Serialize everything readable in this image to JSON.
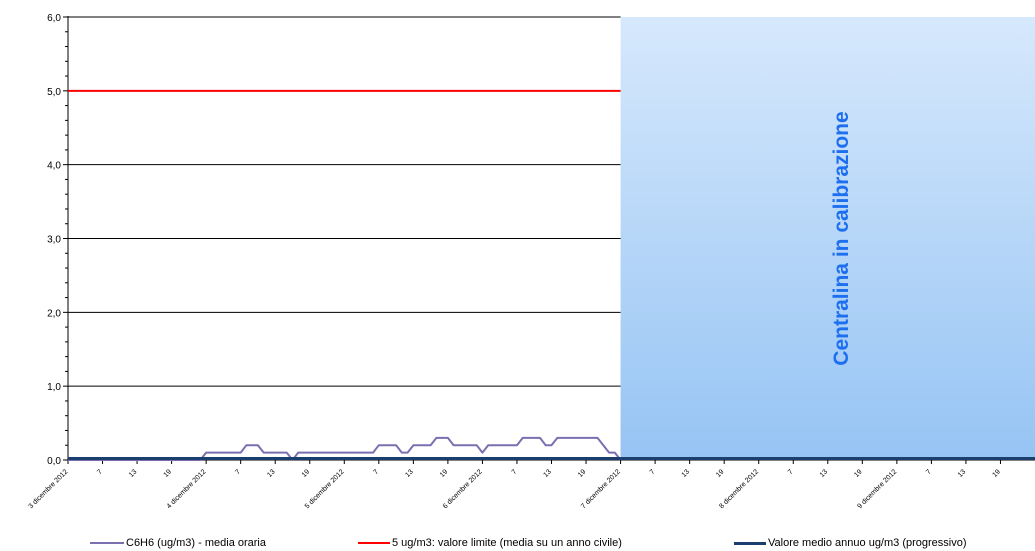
{
  "chart_data": {
    "type": "line",
    "ylim": [
      0,
      6
    ],
    "y_ticks": [
      "0,0",
      "1,0",
      "2,0",
      "3,0",
      "4,0",
      "5,0",
      "6,0"
    ],
    "x_tick_labels": [
      "3 dicembre 2012",
      "7",
      "13",
      "19",
      "4 dicembre 2012",
      "7",
      "13",
      "19",
      "5 dicembre 2012",
      "7",
      "13",
      "19",
      "6 dicembre 2012",
      "7",
      "13",
      "19",
      "7 dicembre 2012",
      "7",
      "13",
      "19",
      "8 dicembre 2012",
      "7",
      "13",
      "19",
      "9 dicembre 2012",
      "7",
      "13",
      "19"
    ],
    "hours_shown": 168,
    "grid": true,
    "calibration_band": {
      "from_hour": 96,
      "to_hour": 168,
      "label": "Centralina in calibrazione",
      "color_top": "#d6e8fc",
      "color_bottom": "#96c4f4",
      "label_color": "#1e6ff0"
    },
    "series": [
      {
        "name": "C6H6 (ug/m3)  - media oraria",
        "color": "#7b6fb0",
        "values": [
          0,
          0,
          0,
          0,
          0,
          0,
          0,
          0,
          0,
          0,
          0,
          0,
          0,
          0,
          0,
          0,
          0,
          0,
          0,
          0,
          0,
          0,
          0,
          0,
          0.1,
          0.1,
          0.1,
          0.1,
          0.1,
          0.1,
          0.1,
          0.2,
          0.2,
          0.2,
          0.1,
          0.1,
          0.1,
          0.1,
          0.1,
          0,
          0.1,
          0.1,
          0.1,
          0.1,
          0.1,
          0.1,
          0.1,
          0.1,
          0.1,
          0.1,
          0.1,
          0.1,
          0.1,
          0.1,
          0.2,
          0.2,
          0.2,
          0.2,
          0.1,
          0.1,
          0.2,
          0.2,
          0.2,
          0.2,
          0.3,
          0.3,
          0.3,
          0.2,
          0.2,
          0.2,
          0.2,
          0.2,
          0.1,
          0.2,
          0.2,
          0.2,
          0.2,
          0.2,
          0.2,
          0.3,
          0.3,
          0.3,
          0.3,
          0.2,
          0.2,
          0.3,
          0.3,
          0.3,
          0.3,
          0.3,
          0.3,
          0.3,
          0.3,
          0.2,
          0.1,
          0.1,
          0
        ]
      },
      {
        "name": "5 ug/m3: valore limite (media su un anno civile)",
        "color": "#ff0000",
        "constant": 5,
        "to_hour": 96
      },
      {
        "name": "Valore medio annuo ug/m3 (progressivo)",
        "color": "#1a3f6e",
        "constant": 0.02,
        "to_hour": 168
      }
    ]
  }
}
